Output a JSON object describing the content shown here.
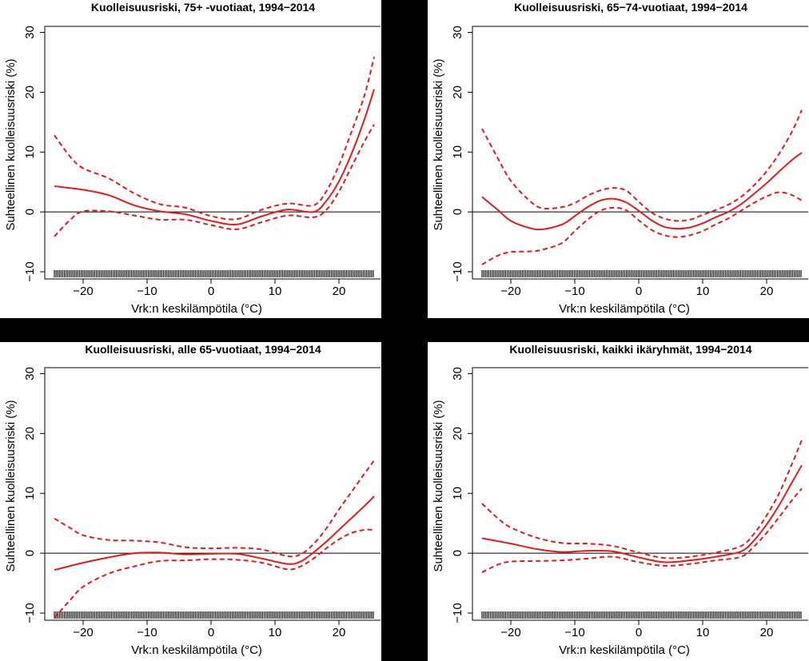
{
  "chart_data": [
    {
      "type": "line",
      "title": "Kuolleisuusriski, 75+ -vuotiaat, 1994−2014",
      "xlabel": "Vrk:n keskilämpötila (°C)",
      "ylabel": "Suhteellinen kuolleisuusriski (%)",
      "xlim": [
        -26,
        26.5
      ],
      "ylim": [
        -11.2,
        31
      ],
      "x_ticks": [
        -20,
        -10,
        0,
        10,
        20
      ],
      "x_tick_labels": [
        "−20",
        "−10",
        "0",
        "10",
        "20"
      ],
      "y_ticks": [
        -10,
        0,
        10,
        20,
        30
      ],
      "y_tick_labels": [
        "−10",
        "0",
        "10",
        "20",
        "30"
      ],
      "reference_line_y": 0,
      "rug": {
        "from": -24.5,
        "to": 25.5
      },
      "colors": {
        "estimate": "#e8191c",
        "ci": "#e8191c",
        "axis": "#000000"
      },
      "series": [
        {
          "style": "solid",
          "x": [
            -24.5,
            -20,
            -16,
            -12,
            -8,
            -4,
            0,
            4,
            8,
            12,
            16,
            18,
            20,
            22,
            24,
            25.5
          ],
          "y": [
            4.3,
            3.7,
            2.8,
            1.1,
            0.1,
            -0.4,
            -1.5,
            -2.1,
            -0.7,
            0.4,
            0.0,
            1.8,
            5.1,
            9.8,
            15.5,
            20.5
          ]
        },
        {
          "style": "dashed",
          "x": [
            -24.5,
            -22,
            -20,
            -16,
            -12,
            -8,
            -4,
            0,
            4,
            8,
            12,
            16,
            18,
            20,
            22,
            24,
            25.5
          ],
          "y": [
            12.8,
            9.2,
            7.3,
            5.6,
            3.1,
            1.3,
            0.7,
            -0.7,
            -1.2,
            0.4,
            1.4,
            1.1,
            3.4,
            7.8,
            13.5,
            19.5,
            25.9
          ]
        },
        {
          "style": "dashed",
          "x": [
            -24.5,
            -22,
            -20,
            -16,
            -12,
            -8,
            -4,
            0,
            4,
            8,
            12,
            16,
            18,
            20,
            22,
            24,
            25.5
          ],
          "y": [
            -4.1,
            -1.3,
            0.1,
            0.1,
            -0.6,
            -1.3,
            -1.3,
            -2.2,
            -2.9,
            -1.7,
            -0.6,
            -0.9,
            0.3,
            3.4,
            7.6,
            11.8,
            14.6
          ]
        }
      ]
    },
    {
      "type": "line",
      "title": "Kuolleisuusriski, 65−74-vuotiaat, 1994−2014",
      "xlabel": "Vrk:n keskilämpötila (°C)",
      "ylabel": "Suhteellinen kuolleisuusriski (%)",
      "xlim": [
        -26,
        26.5
      ],
      "ylim": [
        -11.2,
        31
      ],
      "x_ticks": [
        -20,
        -10,
        0,
        10,
        20
      ],
      "x_tick_labels": [
        "−20",
        "−10",
        "0",
        "10",
        "20"
      ],
      "y_ticks": [
        -10,
        0,
        10,
        20,
        30
      ],
      "y_tick_labels": [
        "−10",
        "0",
        "10",
        "20",
        "30"
      ],
      "reference_line_y": 0,
      "rug": {
        "from": -24.5,
        "to": 25.5
      },
      "colors": {
        "estimate": "#e8191c",
        "ci": "#e8191c",
        "axis": "#000000"
      },
      "series": [
        {
          "style": "solid",
          "x": [
            -24.5,
            -22,
            -20,
            -17,
            -15,
            -12,
            -10,
            -8,
            -6,
            -4,
            -2,
            0,
            2,
            4,
            6,
            8,
            10,
            12,
            14,
            16,
            18,
            20,
            22,
            24,
            25.5
          ],
          "y": [
            2.5,
            0.3,
            -1.5,
            -2.7,
            -2.9,
            -2.1,
            -0.7,
            0.8,
            1.9,
            2.2,
            1.6,
            0.2,
            -1.4,
            -2.5,
            -2.8,
            -2.6,
            -1.9,
            -0.9,
            0.0,
            1.3,
            3.0,
            4.8,
            6.8,
            8.7,
            9.9
          ]
        },
        {
          "style": "dashed",
          "x": [
            -24.5,
            -22,
            -20,
            -17,
            -15,
            -12,
            -10,
            -8,
            -6,
            -4,
            -2,
            0,
            2,
            4,
            6,
            8,
            10,
            12,
            14,
            16,
            18,
            20,
            22,
            24,
            25.5
          ],
          "y": [
            13.9,
            8.9,
            5.2,
            1.8,
            0.6,
            0.8,
            1.5,
            2.7,
            3.6,
            4.0,
            3.6,
            1.7,
            -0.1,
            -1.1,
            -1.5,
            -1.3,
            -0.5,
            0.3,
            1.2,
            2.5,
            4.4,
            6.8,
            9.8,
            13.5,
            17.0
          ]
        },
        {
          "style": "dashed",
          "x": [
            -24.5,
            -22,
            -20,
            -17,
            -15,
            -12,
            -10,
            -8,
            -6,
            -4,
            -2,
            0,
            2,
            4,
            6,
            8,
            10,
            12,
            14,
            16,
            18,
            20,
            22,
            24,
            25.5
          ],
          "y": [
            -8.8,
            -7.3,
            -6.7,
            -6.6,
            -6.3,
            -5.2,
            -3.2,
            -1.3,
            0.2,
            0.7,
            0.3,
            -1.4,
            -3.0,
            -3.9,
            -4.2,
            -3.9,
            -3.2,
            -2.1,
            -1.1,
            0.2,
            1.5,
            2.6,
            3.3,
            2.8,
            1.9
          ]
        }
      ]
    },
    {
      "type": "line",
      "title": "Kuolleisuusriski, alle 65-vuotiaat, 1994−2014",
      "xlabel": "Vrk:n keskilämpötila (°C)",
      "ylabel": "Suhteellinen kuolleisuusriski (%)",
      "xlim": [
        -26,
        26.5
      ],
      "ylim": [
        -11.2,
        31
      ],
      "x_ticks": [
        -20,
        -10,
        0,
        10,
        20
      ],
      "x_tick_labels": [
        "−20",
        "−10",
        "0",
        "10",
        "20"
      ],
      "y_ticks": [
        -10,
        0,
        10,
        20,
        30
      ],
      "y_tick_labels": [
        "−10",
        "0",
        "10",
        "20",
        "30"
      ],
      "reference_line_y": 0,
      "rug": {
        "from": -24.5,
        "to": 25.5
      },
      "colors": {
        "estimate": "#e8191c",
        "ci": "#e8191c",
        "axis": "#000000"
      },
      "series": [
        {
          "style": "solid",
          "x": [
            -24.5,
            -20,
            -16,
            -12,
            -8,
            -4,
            0,
            4,
            8,
            12,
            14,
            16,
            18,
            20,
            22,
            24,
            25.5
          ],
          "y": [
            -2.8,
            -1.6,
            -0.7,
            0.0,
            0.1,
            -0.2,
            -0.1,
            -0.1,
            -0.9,
            -1.8,
            -1.4,
            0.1,
            1.9,
            3.9,
            5.9,
            7.9,
            9.5
          ]
        },
        {
          "style": "dashed",
          "x": [
            -24.5,
            -22,
            -20,
            -16,
            -12,
            -8,
            -4,
            0,
            4,
            8,
            12,
            14,
            16,
            18,
            20,
            22,
            24,
            25.5
          ],
          "y": [
            5.8,
            4.2,
            3.0,
            2.2,
            2.1,
            1.8,
            1.0,
            0.8,
            0.9,
            0.6,
            -0.5,
            -0.2,
            1.5,
            4.1,
            7.3,
            10.3,
            13.3,
            15.5
          ]
        },
        {
          "style": "dashed",
          "x": [
            -24.5,
            -22,
            -20,
            -16,
            -12,
            -8,
            -4,
            0,
            4,
            8,
            12,
            14,
            16,
            18,
            20,
            22,
            24,
            25.5
          ],
          "y": [
            -10.8,
            -7.8,
            -5.6,
            -3.4,
            -2.2,
            -1.3,
            -1.2,
            -1.0,
            -1.1,
            -1.6,
            -2.7,
            -2.2,
            -0.9,
            0.8,
            2.3,
            3.4,
            3.9,
            3.9
          ]
        }
      ]
    },
    {
      "type": "line",
      "title": "Kuolleisuusriski, kaikki ikäryhmät, 1994−2014",
      "xlabel": "Vrk:n keskilämpötila (°C)",
      "ylabel": "Suhteellinen kuolleisuusriski (%)",
      "xlim": [
        -26,
        26.5
      ],
      "ylim": [
        -11.2,
        31
      ],
      "x_ticks": [
        -20,
        -10,
        0,
        10,
        20
      ],
      "x_tick_labels": [
        "−20",
        "−10",
        "0",
        "10",
        "20"
      ],
      "y_ticks": [
        -10,
        0,
        10,
        20,
        30
      ],
      "y_tick_labels": [
        "−10",
        "0",
        "10",
        "20",
        "30"
      ],
      "reference_line_y": 0,
      "rug": {
        "from": -24.5,
        "to": 25.5
      },
      "colors": {
        "estimate": "#e8191c",
        "ci": "#e8191c",
        "axis": "#000000"
      },
      "series": [
        {
          "style": "solid",
          "x": [
            -24.5,
            -20,
            -16,
            -12,
            -8,
            -4,
            0,
            4,
            8,
            12,
            16,
            18,
            20,
            22,
            24,
            25.5
          ],
          "y": [
            2.5,
            1.6,
            0.7,
            0.2,
            0.4,
            0.3,
            -0.7,
            -1.5,
            -1.2,
            -0.6,
            0.3,
            2.1,
            4.8,
            8.1,
            11.9,
            14.7
          ]
        },
        {
          "style": "dashed",
          "x": [
            -24.5,
            -22,
            -20,
            -16,
            -12,
            -8,
            -4,
            0,
            4,
            8,
            12,
            16,
            18,
            20,
            22,
            24,
            25.5
          ],
          "y": [
            8.3,
            5.8,
            4.3,
            2.6,
            1.7,
            1.6,
            1.2,
            0.1,
            -0.8,
            -0.6,
            0.1,
            1.2,
            3.2,
            6.3,
            10.1,
            15.0,
            18.9
          ]
        },
        {
          "style": "dashed",
          "x": [
            -24.5,
            -22,
            -20,
            -16,
            -12,
            -8,
            -4,
            0,
            4,
            8,
            12,
            16,
            18,
            20,
            22,
            24,
            25.5
          ],
          "y": [
            -3.2,
            -1.9,
            -1.4,
            -1.3,
            -1.2,
            -0.9,
            -0.6,
            -1.5,
            -2.1,
            -1.8,
            -1.2,
            -0.6,
            1.1,
            3.4,
            6.1,
            8.9,
            10.8
          ]
        }
      ]
    }
  ]
}
